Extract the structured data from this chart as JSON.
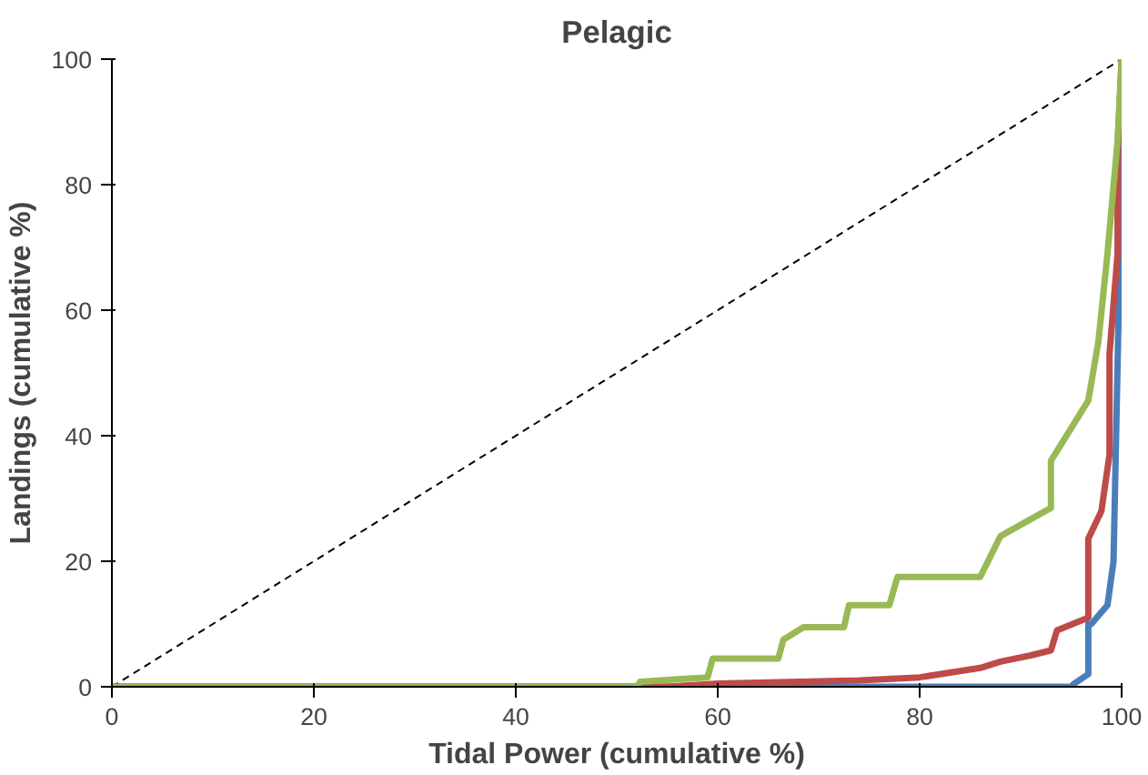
{
  "chart_data": {
    "type": "line",
    "title": "Pelagic",
    "xlabel": "Tidal Power (cumulative %)",
    "ylabel": "Landings (cumulative %)",
    "xlim": [
      0,
      100
    ],
    "ylim": [
      0,
      100
    ],
    "xticks": [
      0,
      20,
      40,
      60,
      80,
      100
    ],
    "yticks": [
      0,
      20,
      40,
      60,
      80,
      100
    ],
    "grid": false,
    "series": [
      {
        "color": "#000000",
        "line_style": "dashed",
        "x": [
          0,
          100
        ],
        "values": [
          0,
          100
        ]
      },
      {
        "color": "#4a7ebb",
        "x": [
          0,
          95,
          95.3,
          96.7,
          96.7,
          97,
          98.6,
          99.2,
          99.8,
          100
        ],
        "values": [
          0,
          0,
          0.5,
          2,
          10,
          10,
          13,
          20,
          67,
          100
        ]
      },
      {
        "color": "#be4b48",
        "x": [
          0,
          55,
          60,
          74,
          80,
          86,
          88,
          91,
          93,
          93.6,
          96.7,
          96.7,
          98,
          98.8,
          98.8,
          99.6,
          99.6,
          100
        ],
        "values": [
          0,
          0,
          0.5,
          1,
          1.5,
          3,
          4,
          5,
          5.8,
          9,
          11,
          23.6,
          28,
          37,
          53,
          69,
          85.5,
          100
        ]
      },
      {
        "color": "#98b954",
        "x": [
          0,
          52,
          52.3,
          59,
          59.5,
          66,
          66.5,
          68.5,
          72.5,
          73,
          77,
          77.8,
          86,
          88,
          93,
          93,
          96.7,
          97.7,
          98.6,
          99.6,
          100
        ],
        "values": [
          0,
          0,
          0.8,
          1.5,
          4.5,
          4.5,
          7.5,
          9.5,
          9.5,
          13,
          13,
          17.5,
          17.5,
          24,
          28.5,
          36,
          45.6,
          55,
          69,
          87,
          100
        ]
      }
    ]
  }
}
